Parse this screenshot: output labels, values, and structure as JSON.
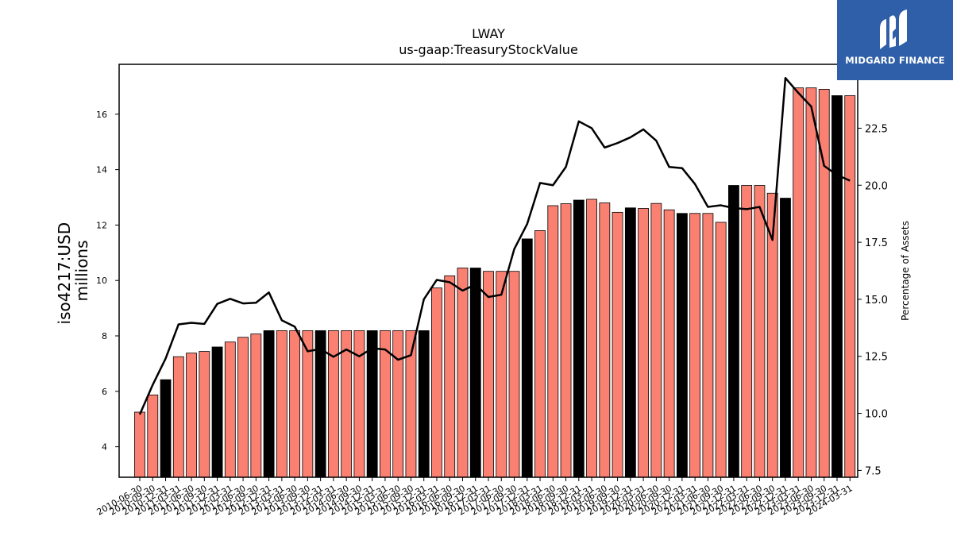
{
  "branding": {
    "logo_text": "MIDGARD FINANCE",
    "logo_color": "#2f5fa8"
  },
  "chart_data": {
    "type": "bar",
    "title": "LWAY",
    "subtitle": "us-gaap:TreasuryStockValue",
    "ylabel": "iso4217:USD\nmillions",
    "y2label": "Percentage of Assets",
    "ylim": [
      2.9,
      17.8
    ],
    "y2lim": [
      7.2,
      25.3
    ],
    "yticks": [
      4,
      6,
      8,
      10,
      12,
      14,
      16
    ],
    "y2ticks": [
      7.5,
      10.0,
      12.5,
      15.0,
      17.5,
      20.0,
      22.5
    ],
    "grid": false,
    "colors": {
      "bar_default": "#fa8072",
      "bar_highlight": "#000000",
      "line": "#000000"
    },
    "categories": [
      "2010-06-30",
      "2010-09-30",
      "2010-12-31",
      "2011-03-31",
      "2011-06-30",
      "2011-09-30",
      "2011-12-31",
      "2012-03-31",
      "2012-06-30",
      "2012-09-30",
      "2012-12-31",
      "2013-03-31",
      "2013-06-30",
      "2013-09-30",
      "2013-12-31",
      "2014-03-31",
      "2014-06-30",
      "2014-09-30",
      "2014-12-31",
      "2015-03-31",
      "2015-06-30",
      "2015-09-30",
      "2015-12-31",
      "2016-03-31",
      "2016-06-30",
      "2016-09-30",
      "2016-12-31",
      "2017-03-31",
      "2017-06-30",
      "2017-09-30",
      "2017-12-31",
      "2018-03-31",
      "2018-06-30",
      "2018-09-30",
      "2018-12-31",
      "2019-03-31",
      "2019-06-30",
      "2019-09-30",
      "2019-12-31",
      "2020-03-31",
      "2020-06-30",
      "2020-09-30",
      "2020-12-31",
      "2021-03-31",
      "2021-06-30",
      "2021-09-30",
      "2021-12-31",
      "2022-03-31",
      "2022-06-30",
      "2022-09-30",
      "2022-12-31",
      "2023-03-31",
      "2023-06-30",
      "2023-09-30",
      "2023-12-31",
      "2024-03-31"
    ],
    "series": [
      {
        "type": "bar",
        "axis": "left",
        "values": [
          5.25,
          5.87,
          6.42,
          7.25,
          7.38,
          7.44,
          7.6,
          7.78,
          7.95,
          8.07,
          8.19,
          8.19,
          8.19,
          8.19,
          8.19,
          8.19,
          8.19,
          8.19,
          8.19,
          8.19,
          8.19,
          8.19,
          8.19,
          9.73,
          10.17,
          10.45,
          10.45,
          10.33,
          10.33,
          10.33,
          11.5,
          11.8,
          12.7,
          12.77,
          12.9,
          12.93,
          12.8,
          12.46,
          12.62,
          12.6,
          12.78,
          12.55,
          12.42,
          12.42,
          12.42,
          12.1,
          13.43,
          13.43,
          13.43,
          13.15,
          12.97,
          16.95,
          16.95,
          16.9,
          16.67,
          16.67
        ],
        "highlight": [
          false,
          false,
          true,
          false,
          false,
          false,
          true,
          false,
          false,
          false,
          true,
          false,
          false,
          false,
          true,
          false,
          false,
          false,
          true,
          false,
          false,
          false,
          true,
          false,
          false,
          false,
          true,
          false,
          false,
          false,
          true,
          false,
          false,
          false,
          true,
          false,
          false,
          false,
          true,
          false,
          false,
          false,
          true,
          false,
          false,
          false,
          true,
          false,
          false,
          false,
          true,
          false,
          false,
          false,
          true,
          false
        ]
      },
      {
        "type": "line",
        "axis": "right",
        "values": [
          9.95,
          11.25,
          12.4,
          13.9,
          13.97,
          13.92,
          14.8,
          15.02,
          14.82,
          14.85,
          15.3,
          14.08,
          13.8,
          12.72,
          12.82,
          12.48,
          12.8,
          12.5,
          12.85,
          12.8,
          12.35,
          12.55,
          15.0,
          15.85,
          15.75,
          15.38,
          15.65,
          15.1,
          15.2,
          17.2,
          18.3,
          20.1,
          20.0,
          20.8,
          22.8,
          22.5,
          21.65,
          21.85,
          22.1,
          22.45,
          21.95,
          20.8,
          20.75,
          20.05,
          19.05,
          19.12,
          19.0,
          18.95,
          19.05,
          17.6,
          24.7,
          24.05,
          23.45,
          20.85,
          20.45,
          20.2
        ]
      }
    ]
  }
}
